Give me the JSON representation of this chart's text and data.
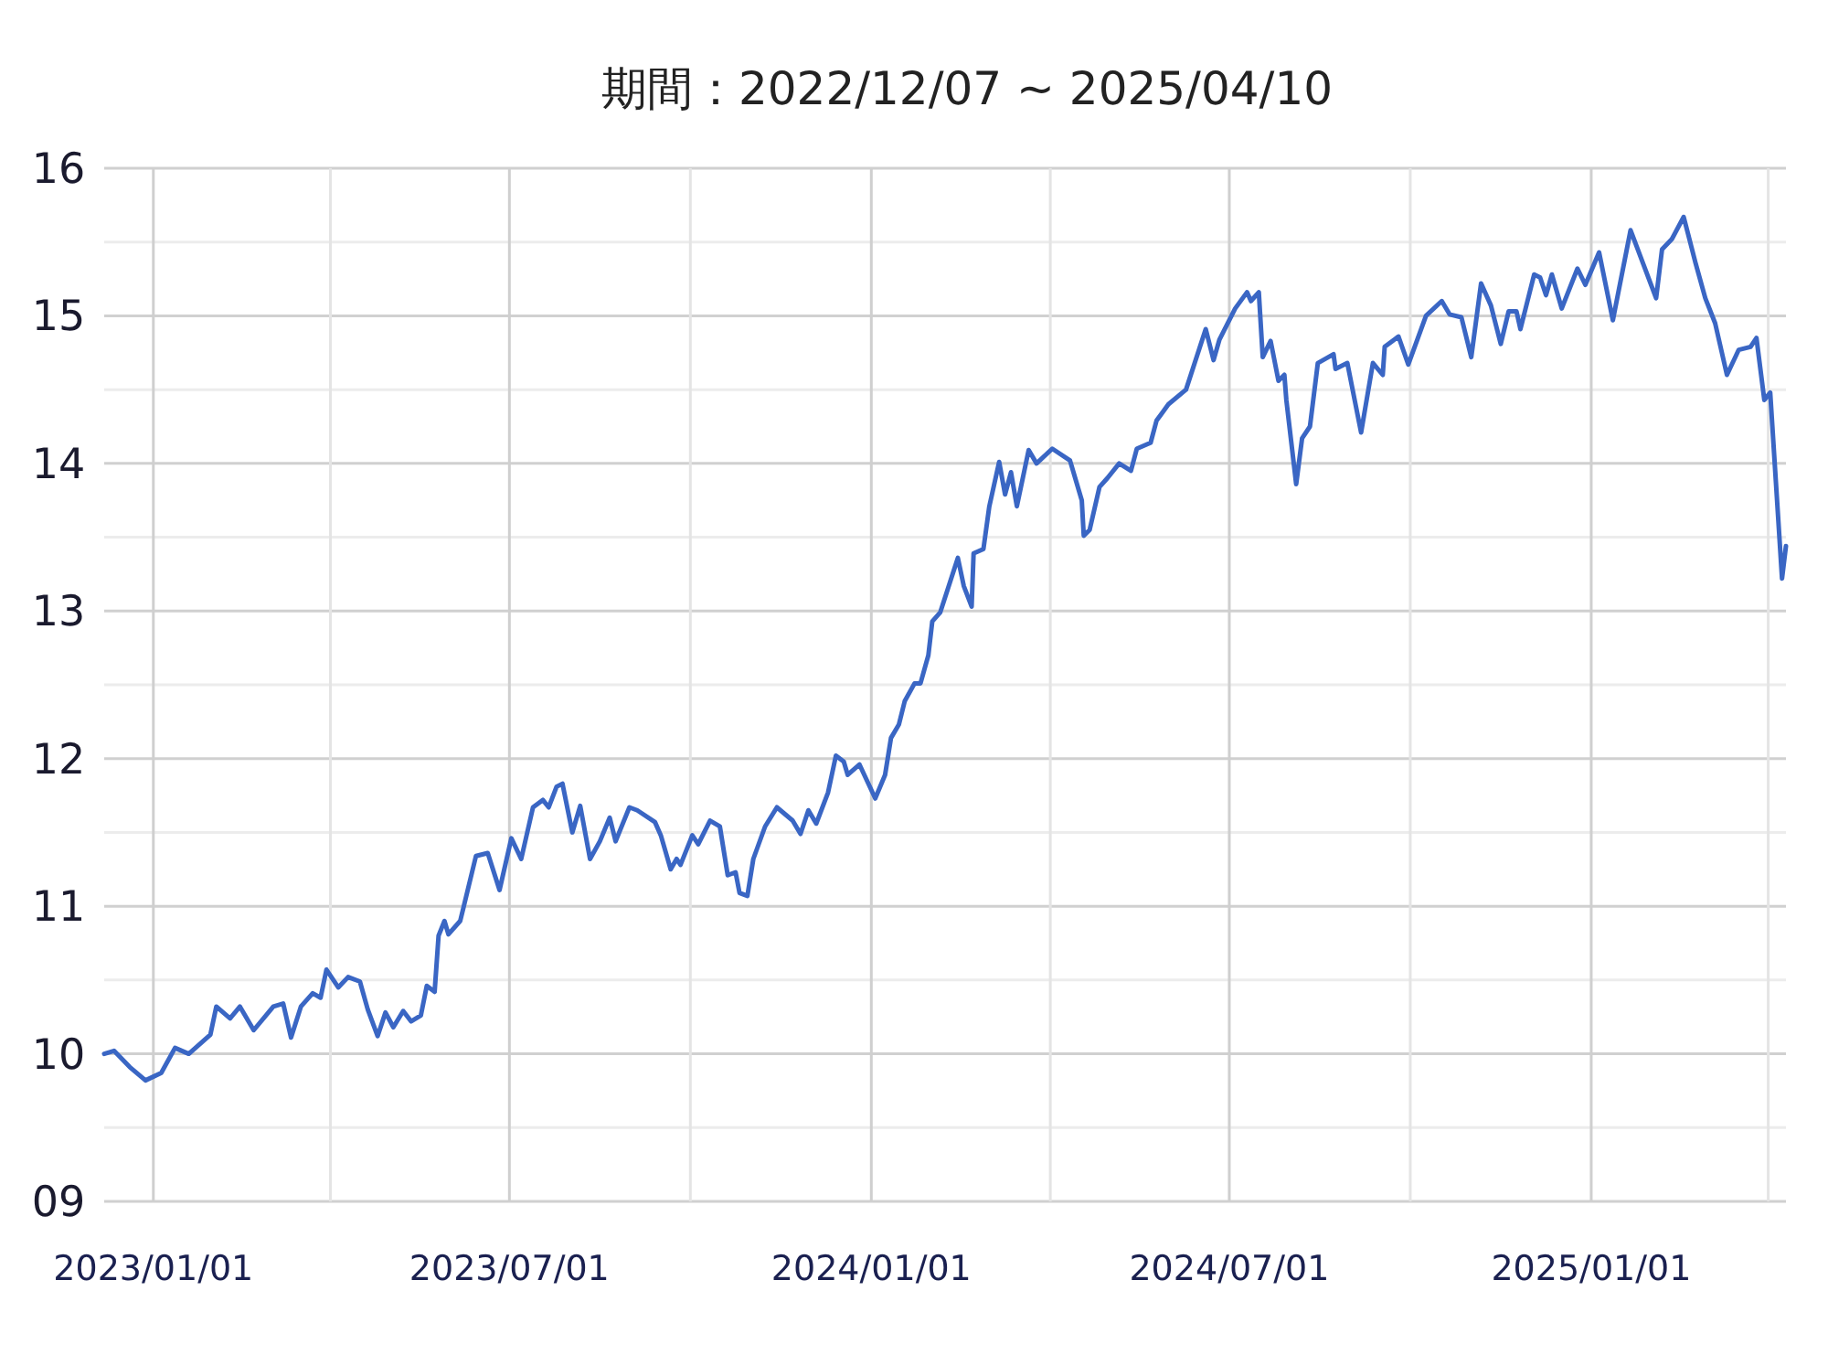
{
  "chart_data": {
    "type": "line",
    "title": "期間：2022/12/07 ~ 2025/04/10",
    "x": [
      "2022-12-07",
      "2022-12-12",
      "2022-12-20",
      "2022-12-28",
      "2023-01-05",
      "2023-01-12",
      "2023-01-19",
      "2023-01-30",
      "2023-02-02",
      "2023-02-09",
      "2023-02-14",
      "2023-02-21",
      "2023-03-03",
      "2023-03-08",
      "2023-03-12",
      "2023-03-17",
      "2023-03-23",
      "2023-03-27",
      "2023-03-30",
      "2023-04-05",
      "2023-04-10",
      "2023-04-16",
      "2023-04-20",
      "2023-04-25",
      "2023-04-29",
      "2023-05-03",
      "2023-05-08",
      "2023-05-12",
      "2023-05-17",
      "2023-05-20",
      "2023-05-24",
      "2023-05-26",
      "2023-05-29",
      "2023-05-31",
      "2023-06-06",
      "2023-06-14",
      "2023-06-20",
      "2023-06-26",
      "2023-07-02",
      "2023-07-07",
      "2023-07-13",
      "2023-07-18",
      "2023-07-21",
      "2023-07-25",
      "2023-07-28",
      "2023-08-02",
      "2023-08-06",
      "2023-08-11",
      "2023-08-16",
      "2023-08-21",
      "2023-08-24",
      "2023-08-31",
      "2023-09-04",
      "2023-09-13",
      "2023-09-16",
      "2023-09-21",
      "2023-09-24",
      "2023-09-26",
      "2023-10-02",
      "2023-10-05",
      "2023-10-11",
      "2023-10-16",
      "2023-10-20",
      "2023-10-24",
      "2023-10-26",
      "2023-10-30",
      "2023-11-02",
      "2023-11-08",
      "2023-11-14",
      "2023-11-22",
      "2023-11-26",
      "2023-11-30",
      "2023-12-04",
      "2023-12-10",
      "2023-12-14",
      "2023-12-18",
      "2023-12-20",
      "2023-12-26",
      "2024-01-03",
      "2024-01-08",
      "2024-01-11",
      "2024-01-15",
      "2024-01-18",
      "2024-01-23",
      "2024-01-26",
      "2024-01-30",
      "2024-02-01",
      "2024-02-05",
      "2024-02-14",
      "2024-02-17",
      "2024-02-21",
      "2024-02-22",
      "2024-02-27",
      "2024-03-01",
      "2024-03-06",
      "2024-03-09",
      "2024-03-12",
      "2024-03-15",
      "2024-03-21",
      "2024-03-25",
      "2024-04-02",
      "2024-04-11",
      "2024-04-17",
      "2024-04-18",
      "2024-04-21",
      "2024-04-26",
      "2024-04-30",
      "2024-05-06",
      "2024-05-12",
      "2024-05-15",
      "2024-05-22",
      "2024-05-25",
      "2024-05-31",
      "2024-06-09",
      "2024-06-19",
      "2024-06-23",
      "2024-06-26",
      "2024-07-04",
      "2024-07-10",
      "2024-07-12",
      "2024-07-16",
      "2024-07-18",
      "2024-07-22",
      "2024-07-26",
      "2024-07-29",
      "2024-07-30",
      "2024-08-04",
      "2024-08-07",
      "2024-08-11",
      "2024-08-15",
      "2024-08-23",
      "2024-08-24",
      "2024-08-30",
      "2024-09-06",
      "2024-09-12",
      "2024-09-17",
      "2024-09-18",
      "2024-09-25",
      "2024-09-30",
      "2024-10-09",
      "2024-10-17",
      "2024-10-21",
      "2024-10-27",
      "2024-11-01",
      "2024-11-06",
      "2024-11-11",
      "2024-11-16",
      "2024-11-20",
      "2024-11-24",
      "2024-11-26",
      "2024-12-03",
      "2024-12-06",
      "2024-12-09",
      "2024-12-12",
      "2024-12-17",
      "2024-12-25",
      "2024-12-29",
      "2025-01-05",
      "2025-01-12",
      "2025-01-21",
      "2025-02-03",
      "2025-02-06",
      "2025-02-11",
      "2025-02-17",
      "2025-02-23",
      "2025-02-28",
      "2025-03-05",
      "2025-03-11",
      "2025-03-17",
      "2025-03-23",
      "2025-03-26",
      "2025-03-30",
      "2025-04-02",
      "2025-04-08",
      "2025-04-10"
    ],
    "series": [
      {
        "color": "#3a66c4",
        "values": [
          10.0,
          10.02,
          9.91,
          9.82,
          9.87,
          10.04,
          10.0,
          10.13,
          10.32,
          10.24,
          10.32,
          10.16,
          10.32,
          10.34,
          10.11,
          10.32,
          10.41,
          10.38,
          10.57,
          10.45,
          10.52,
          10.49,
          10.3,
          10.12,
          10.28,
          10.18,
          10.29,
          10.22,
          10.26,
          10.46,
          10.42,
          10.8,
          10.9,
          10.81,
          10.9,
          11.34,
          11.36,
          11.11,
          11.46,
          11.32,
          11.67,
          11.72,
          11.67,
          11.81,
          11.83,
          11.5,
          11.68,
          11.32,
          11.44,
          11.6,
          11.44,
          11.67,
          11.65,
          11.57,
          11.48,
          11.25,
          11.32,
          11.28,
          11.48,
          11.42,
          11.58,
          11.54,
          11.21,
          11.23,
          11.09,
          11.07,
          11.32,
          11.54,
          11.67,
          11.58,
          11.49,
          11.65,
          11.56,
          11.77,
          12.02,
          11.98,
          11.89,
          11.96,
          11.73,
          11.89,
          12.14,
          12.23,
          12.39,
          12.51,
          12.51,
          12.7,
          12.93,
          12.99,
          13.36,
          13.17,
          13.03,
          13.39,
          13.42,
          13.71,
          14.01,
          13.79,
          13.94,
          13.71,
          14.09,
          14.0,
          14.1,
          14.02,
          13.75,
          13.51,
          13.55,
          13.84,
          13.9,
          14.0,
          13.95,
          14.1,
          14.14,
          14.29,
          14.4,
          14.5,
          14.91,
          14.7,
          14.84,
          15.05,
          15.16,
          15.1,
          15.16,
          14.72,
          14.83,
          14.56,
          14.6,
          14.43,
          13.86,
          14.17,
          14.25,
          14.68,
          14.74,
          14.64,
          14.68,
          14.21,
          14.68,
          14.6,
          14.79,
          14.86,
          14.67,
          15.0,
          15.1,
          15.01,
          14.99,
          14.72,
          15.22,
          15.07,
          14.81,
          15.03,
          15.03,
          14.91,
          15.28,
          15.26,
          15.14,
          15.28,
          15.05,
          15.32,
          15.21,
          15.43,
          14.97,
          15.58,
          15.12,
          15.45,
          15.52,
          15.67,
          15.36,
          15.12,
          14.95,
          14.6,
          14.77,
          14.79,
          14.85,
          14.43,
          14.48,
          13.22,
          13.44
        ]
      }
    ],
    "xlim": [
      "2022-12-07",
      "2025-04-10"
    ],
    "xticks": [
      {
        "value": "2023-01-01",
        "label": "2023/01/01"
      },
      {
        "value": "2023-04-01",
        "label": null
      },
      {
        "value": "2023-07-01",
        "label": "2023/07/01"
      },
      {
        "value": "2023-10-01",
        "label": null
      },
      {
        "value": "2024-01-01",
        "label": "2024/01/01"
      },
      {
        "value": "2024-04-01",
        "label": null
      },
      {
        "value": "2024-07-01",
        "label": "2024/07/01"
      },
      {
        "value": "2024-10-01",
        "label": null
      },
      {
        "value": "2025-01-01",
        "label": "2025/01/01"
      },
      {
        "value": "2025-04-01",
        "label": null
      }
    ],
    "ylim": [
      9,
      16
    ],
    "yticks": [
      {
        "value": 9,
        "label": "09"
      },
      {
        "value": 9.5,
        "label": null
      },
      10,
      {
        "value": 10.5,
        "label": null
      },
      11,
      {
        "value": 11.5,
        "label": null
      },
      12,
      {
        "value": 12.5,
        "label": null
      },
      13,
      {
        "value": 13.5,
        "label": null
      },
      14,
      {
        "value": 14.5,
        "label": null
      },
      15,
      {
        "value": 15.5,
        "label": null
      },
      16
    ],
    "grid": true,
    "marker": "none",
    "line_style": "solid"
  }
}
